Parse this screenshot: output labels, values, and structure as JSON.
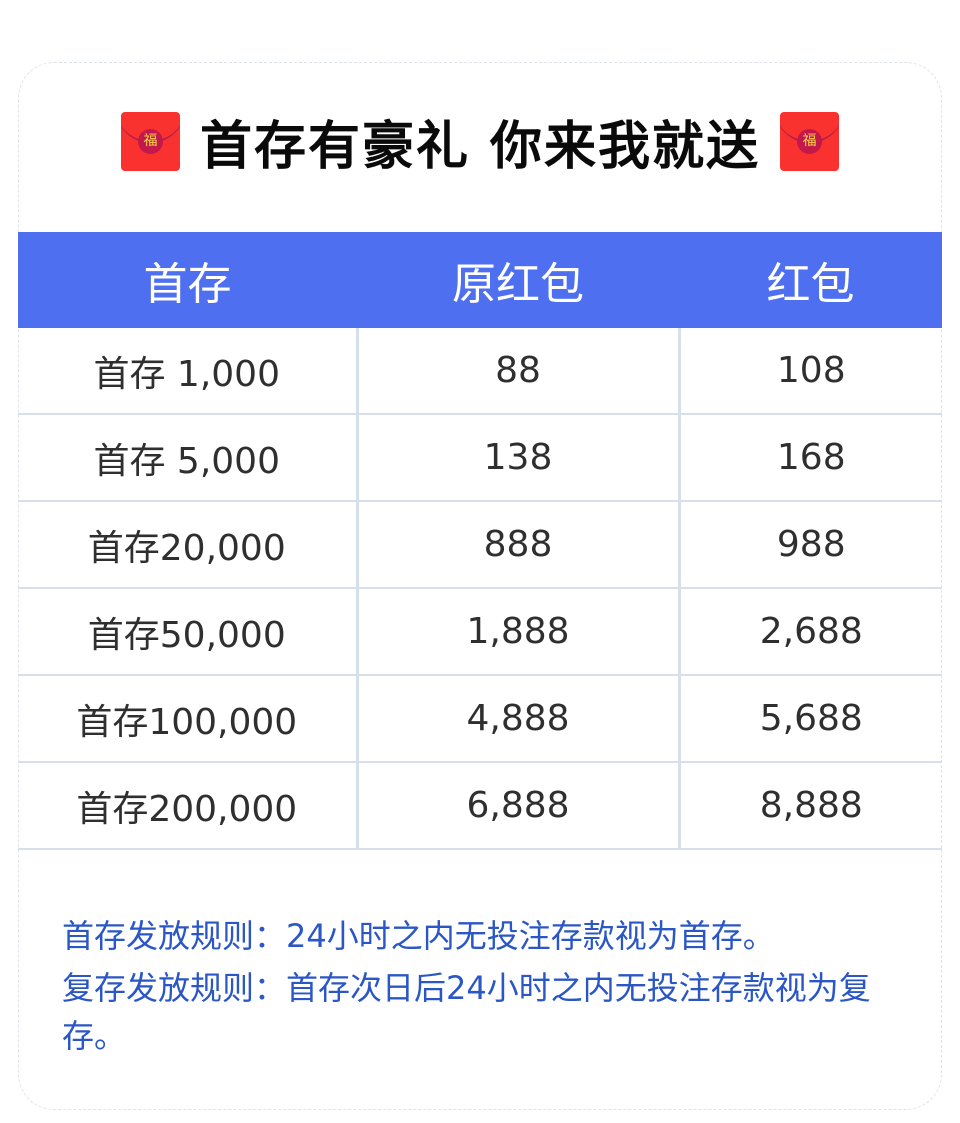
{
  "title": {
    "text": "首存有豪礼 你来我就送",
    "icon_left": "red-envelope-icon",
    "icon_right": "red-envelope-icon",
    "icon_glyph": "福"
  },
  "table": {
    "headers": [
      "首存",
      "原红包",
      "红包"
    ],
    "rows": [
      [
        "首存 1,000",
        "88",
        "108"
      ],
      [
        "首存 5,000",
        "138",
        "168"
      ],
      [
        "首存20,000",
        "888",
        "988"
      ],
      [
        "首存50,000",
        "1,888",
        "2,688"
      ],
      [
        "首存100,000",
        "4,888",
        "5,688"
      ],
      [
        "首存200,000",
        "6,888",
        "8,888"
      ]
    ],
    "header_color": "#4e6fef"
  },
  "rules": [
    "首存发放规则：24小时之内无投注存款视为首存。",
    "复存发放规则：首存次日后24小时之内无投注存款视为复存。"
  ],
  "rules_color": "#2a56c6"
}
